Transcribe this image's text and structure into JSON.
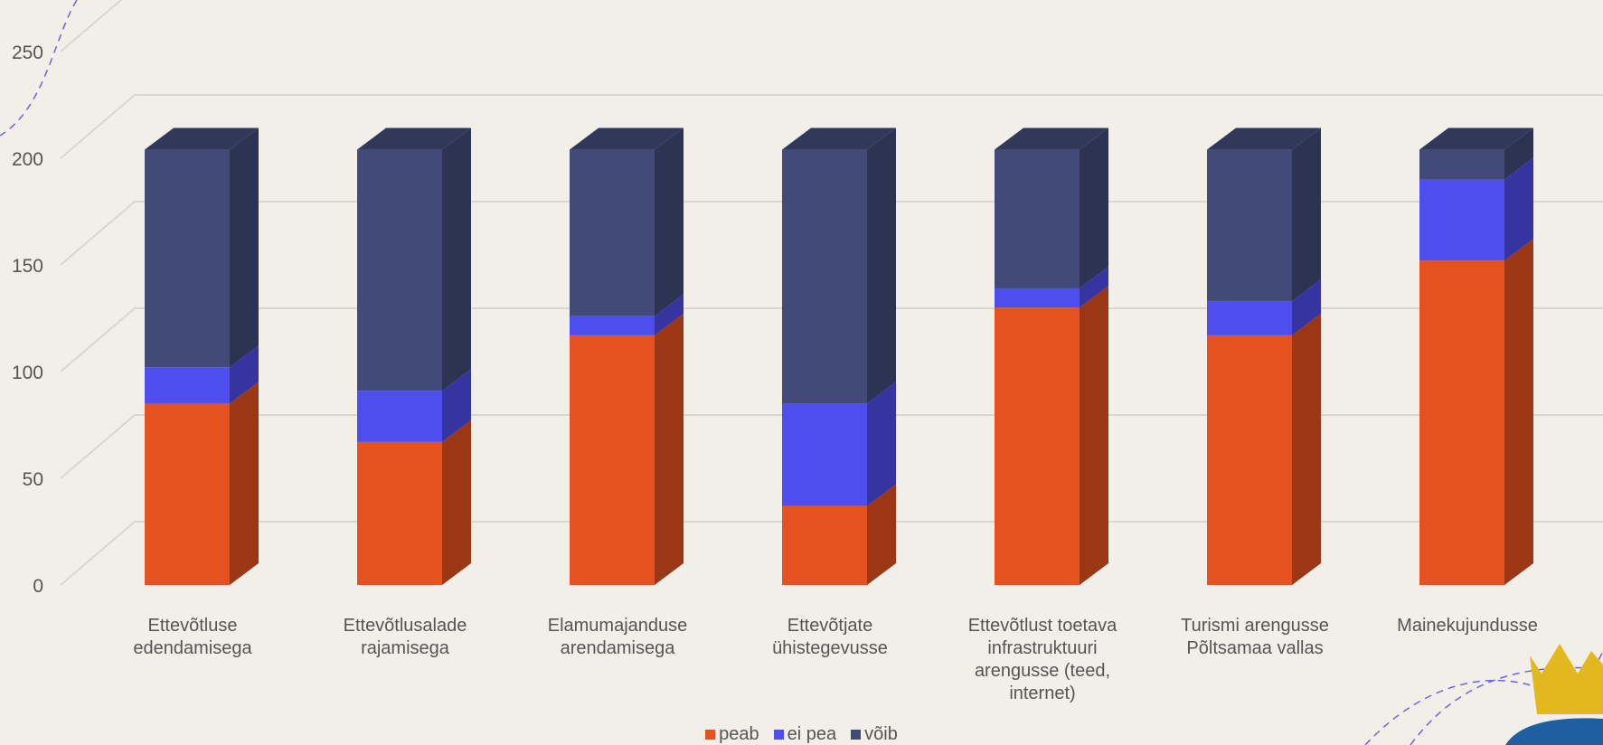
{
  "chart_data": {
    "type": "bar",
    "stacked": true,
    "three_d": true,
    "categories": [
      [
        "Ettevõtluse",
        "edendamisega"
      ],
      [
        "Ettevõtlusalade",
        "rajamisega"
      ],
      [
        "Elamumajanduse",
        "arendamisega"
      ],
      [
        "Ettevõtjate",
        "ühistegevusse"
      ],
      [
        "Ettevõtlust toetava",
        "infrastruktuuri",
        "arengusse (teed,",
        "internet)"
      ],
      [
        "Turismi arengusse",
        "Põltsamaa vallas"
      ],
      [
        "Mainekujundusse"
      ]
    ],
    "series": [
      {
        "name": "peab",
        "color": "#e5511f",
        "values": [
          85,
          67,
          117,
          37,
          130,
          117,
          152
        ]
      },
      {
        "name": "ei pea",
        "color": "#4e4ded",
        "values": [
          17,
          24,
          9,
          48,
          9,
          16,
          38
        ]
      },
      {
        "name": "võib",
        "color": "#424b78",
        "values": [
          102,
          113,
          78,
          119,
          65,
          71,
          14
        ]
      }
    ],
    "yticks": [
      0,
      50,
      100,
      150,
      200,
      250
    ],
    "ylim": [
      0,
      250
    ],
    "grid": true,
    "legend_position": "bottom"
  }
}
